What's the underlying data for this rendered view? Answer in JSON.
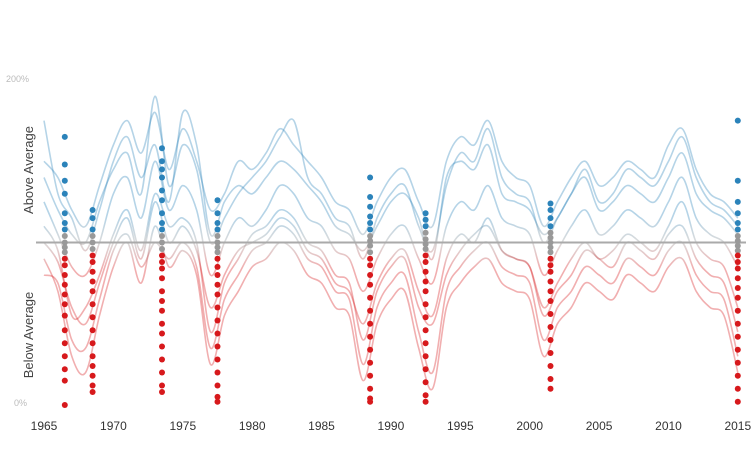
{
  "chart_data": {
    "type": "line",
    "y_tick_labels": [
      "200%",
      "0%"
    ],
    "ylim": [
      0,
      200
    ],
    "baseline": 100,
    "labels": {
      "above": "Above Average",
      "below": "Below Average"
    },
    "x_tick_labels": [
      "1965",
      "1970",
      "1975",
      "1980",
      "1985",
      "1990",
      "1995",
      "2000",
      "2005",
      "2010",
      "2015"
    ],
    "xlim": [
      1965,
      2015.3
    ],
    "colors": {
      "above": "#2b83ba",
      "below": "#d7191c",
      "near": "#999999",
      "baseline": "#aaaaaa"
    },
    "series": [
      {
        "x": [
          1965,
          1966,
          1967,
          1968,
          1969,
          1970,
          1971,
          1972,
          1973,
          1974,
          1975,
          1976,
          1977,
          1978,
          1979,
          1980,
          1981,
          1982,
          1983,
          1984,
          1985,
          1986,
          1987,
          1988,
          1989,
          1990,
          1991,
          1992,
          1993,
          1994,
          1995,
          1996,
          1997,
          1998,
          1999,
          2000,
          2001,
          2002,
          2003,
          2004,
          2005,
          2006,
          2007,
          2008,
          2009,
          2010,
          2011,
          2012,
          2013,
          2014,
          2015
        ],
        "y": [
          175,
          130,
          115,
          95,
          120,
          150,
          165,
          140,
          160,
          125,
          180,
          160,
          105,
          125,
          135,
          130,
          140,
          150,
          145,
          135,
          125,
          110,
          105,
          95,
          110,
          125,
          130,
          115,
          90,
          140,
          150,
          145,
          160,
          130,
          125,
          120,
          105,
          115,
          130,
          140,
          120,
          125,
          135,
          130,
          125,
          140,
          155,
          130,
          120,
          115,
          105
        ]
      },
      {
        "x": [
          1965,
          1966,
          1967,
          1968,
          1969,
          1970,
          1971,
          1972,
          1973,
          1974,
          1975,
          1976,
          1977,
          1978,
          1979,
          1980,
          1981,
          1982,
          1983,
          1984,
          1985,
          1986,
          1987,
          1988,
          1989,
          1990,
          1991,
          1992,
          1993,
          1994,
          1995,
          1996,
          1997,
          1998,
          1999,
          2000,
          2001,
          2002,
          2003,
          2004,
          2005,
          2006,
          2007,
          2008,
          2009,
          2010,
          2011,
          2012,
          2013,
          2014,
          2015
        ],
        "y": [
          110,
          95,
          55,
          60,
          80,
          105,
          120,
          95,
          130,
          110,
          115,
          100,
          45,
          75,
          90,
          105,
          110,
          120,
          115,
          100,
          95,
          80,
          75,
          40,
          70,
          85,
          90,
          60,
          50,
          80,
          95,
          105,
          110,
          95,
          90,
          85,
          55,
          70,
          80,
          95,
          90,
          85,
          100,
          95,
          90,
          105,
          110,
          90,
          80,
          75,
          45
        ]
      },
      {
        "x": [
          1965,
          1966,
          1967,
          1968,
          1969,
          1970,
          1971,
          1972,
          1973,
          1974,
          1975,
          1976,
          1977,
          1978,
          1979,
          1980,
          1981,
          1982,
          1983,
          1984,
          1985,
          1986,
          1987,
          1988,
          1989,
          1990,
          1991,
          1992,
          1993,
          1994,
          1995,
          1996,
          1997,
          1998,
          1999,
          2000,
          2001,
          2002,
          2003,
          2004,
          2005,
          2006,
          2007,
          2008,
          2009,
          2010,
          2011,
          2012,
          2013,
          2014,
          2015
        ],
        "y": [
          150,
          140,
          120,
          110,
          135,
          160,
          175,
          155,
          180,
          145,
          170,
          150,
          120,
          130,
          150,
          145,
          155,
          170,
          160,
          150,
          140,
          125,
          120,
          105,
          125,
          140,
          145,
          125,
          110,
          150,
          165,
          160,
          175,
          150,
          140,
          135,
          110,
          125,
          140,
          150,
          135,
          140,
          150,
          145,
          140,
          160,
          170,
          145,
          130,
          125,
          115
        ]
      },
      {
        "x": [
          1965,
          1966,
          1967,
          1968,
          1969,
          1970,
          1971,
          1972,
          1973,
          1974,
          1975,
          1976,
          1977,
          1978,
          1979,
          1980,
          1981,
          1982,
          1983,
          1984,
          1985,
          1986,
          1987,
          1988,
          1989,
          1990,
          1991,
          1992,
          1993,
          1994,
          1995,
          1996,
          1997,
          1998,
          1999,
          2000,
          2001,
          2002,
          2003,
          2004,
          2005,
          2006,
          2007,
          2008,
          2009,
          2010,
          2011,
          2012,
          2013,
          2014,
          2015
        ],
        "y": [
          90,
          70,
          30,
          20,
          55,
          85,
          100,
          75,
          110,
          85,
          95,
          80,
          25,
          55,
          70,
          85,
          90,
          100,
          95,
          80,
          75,
          60,
          55,
          15,
          50,
          65,
          70,
          35,
          10,
          60,
          75,
          85,
          90,
          75,
          70,
          65,
          30,
          50,
          60,
          75,
          70,
          65,
          80,
          75,
          70,
          85,
          90,
          70,
          60,
          55,
          20
        ]
      },
      {
        "x": [
          1965,
          1966,
          1967,
          1968,
          1969,
          1970,
          1971,
          1972,
          1973,
          1974,
          1975,
          1976,
          1977,
          1978,
          1979,
          1980,
          1981,
          1982,
          1983,
          1984,
          1985,
          1986,
          1987,
          1988,
          1989,
          1990,
          1991,
          1992,
          1993,
          1994,
          1995,
          1996,
          1997,
          1998,
          1999,
          2000,
          2001,
          2002,
          2003,
          2004,
          2005,
          2006,
          2007,
          2008,
          2009,
          2010,
          2011,
          2012,
          2013,
          2014,
          2015
        ],
        "y": [
          125,
          105,
          85,
          80,
          100,
          130,
          140,
          115,
          150,
          120,
          135,
          120,
          80,
          100,
          115,
          110,
          120,
          135,
          130,
          115,
          110,
          95,
          90,
          70,
          90,
          105,
          110,
          90,
          75,
          110,
          125,
          120,
          135,
          115,
          110,
          105,
          80,
          95,
          110,
          120,
          105,
          110,
          120,
          115,
          110,
          125,
          140,
          115,
          105,
          100,
          85
        ]
      },
      {
        "x": [
          1965,
          1966,
          1967,
          1968,
          1969,
          1970,
          1971,
          1972,
          1973,
          1974,
          1975,
          1976,
          1977,
          1978,
          1979,
          1980,
          1981,
          1982,
          1983,
          1984,
          1985,
          1986,
          1987,
          1988,
          1989,
          1990,
          1991,
          1992,
          1993,
          1994,
          1995,
          1996,
          1997,
          1998,
          1999,
          2000,
          2001,
          2002,
          2003,
          2004,
          2005,
          2006,
          2007,
          2008,
          2009,
          2010,
          2011,
          2012,
          2013,
          2014,
          2015
        ],
        "y": [
          100,
          88,
          60,
          50,
          75,
          100,
          115,
          90,
          125,
          100,
          110,
          95,
          60,
          80,
          95,
          100,
          105,
          115,
          110,
          95,
          90,
          75,
          70,
          50,
          75,
          90,
          95,
          70,
          55,
          90,
          105,
          100,
          115,
          95,
          90,
          85,
          60,
          75,
          90,
          100,
          90,
          95,
          105,
          100,
          95,
          110,
          125,
          100,
          90,
          85,
          60
        ]
      },
      {
        "x": [
          1965,
          1966,
          1967,
          1968,
          1969,
          1970,
          1971,
          1972,
          1973,
          1974,
          1975,
          1976,
          1977,
          1978,
          1979,
          1980,
          1981,
          1982,
          1983,
          1984,
          1985,
          1986,
          1987,
          1988,
          1989,
          1990,
          1991,
          1992,
          1993,
          1994,
          1995,
          1996,
          1997,
          1998,
          1999,
          2000,
          2001,
          2002,
          2003,
          2004,
          2005,
          2006,
          2007,
          2008,
          2009,
          2010,
          2011,
          2012,
          2013,
          2014,
          2015
        ],
        "y": [
          140,
          120,
          105,
          100,
          125,
          145,
          155,
          130,
          190,
          135,
          160,
          145,
          100,
          115,
          130,
          140,
          150,
          165,
          175,
          140,
          130,
          115,
          110,
          90,
          115,
          130,
          135,
          110,
          95,
          135,
          155,
          150,
          170,
          140,
          130,
          125,
          100,
          115,
          130,
          145,
          125,
          130,
          145,
          140,
          135,
          150,
          165,
          140,
          125,
          120,
          110
        ]
      },
      {
        "x": [
          1965,
          1966,
          1967,
          1968,
          1969,
          1970,
          1971,
          1972,
          1973,
          1974,
          1975,
          1976,
          1977,
          1978,
          1979,
          1980,
          1981,
          1982,
          1983,
          1984,
          1985,
          1986,
          1987,
          1988,
          1989,
          1990,
          1991,
          1992,
          1993,
          1994,
          1995,
          1996,
          1997,
          1998,
          1999,
          2000,
          2001,
          2002,
          2003,
          2004,
          2005,
          2006,
          2007,
          2008,
          2009,
          2010,
          2011,
          2012,
          2013,
          2014,
          2015
        ],
        "y": [
          80,
          75,
          40,
          35,
          65,
          95,
          105,
          85,
          100,
          90,
          100,
          85,
          35,
          65,
          80,
          95,
          100,
          110,
          105,
          90,
          85,
          70,
          65,
          25,
          60,
          75,
          80,
          45,
          20,
          70,
          85,
          95,
          100,
          85,
          80,
          75,
          40,
          60,
          70,
          85,
          80,
          75,
          90,
          85,
          80,
          95,
          100,
          80,
          70,
          65,
          30
        ]
      }
    ],
    "point_markers": [
      {
        "x": 1966.5,
        "y": [
          165,
          148,
          138,
          130,
          118,
          112,
          108,
          104,
          100,
          97,
          94,
          90,
          86,
          80,
          74,
          68,
          62,
          55,
          46,
          38,
          30,
          22,
          15,
          0
        ]
      },
      {
        "x": 1968.5,
        "y": [
          120,
          115,
          108,
          104,
          100,
          96,
          92,
          88,
          82,
          76,
          70,
          62,
          54,
          46,
          38,
          30,
          24,
          18,
          12,
          8
        ]
      },
      {
        "x": 1973.5,
        "y": [
          158,
          150,
          145,
          140,
          132,
          126,
          118,
          112,
          108,
          104,
          100,
          96,
          92,
          88,
          84,
          78,
          70,
          64,
          58,
          50,
          44,
          36,
          28,
          20,
          12,
          8
        ]
      },
      {
        "x": 1977.5,
        "y": [
          126,
          118,
          112,
          108,
          104,
          100,
          97,
          94,
          90,
          85,
          80,
          74,
          68,
          60,
          52,
          44,
          36,
          28,
          20,
          12,
          5,
          2
        ]
      },
      {
        "x": 1988.5,
        "y": [
          140,
          128,
          122,
          116,
          112,
          108,
          104,
          101,
          98,
          94,
          90,
          86,
          80,
          74,
          66,
          58,
          50,
          42,
          34,
          26,
          18,
          10,
          4,
          2
        ]
      },
      {
        "x": 1992.5,
        "y": [
          118,
          114,
          110,
          106,
          102,
          99,
          96,
          92,
          88,
          82,
          76,
          70,
          62,
          54,
          46,
          38,
          30,
          22,
          14,
          6,
          2
        ]
      },
      {
        "x": 2001.5,
        "y": [
          124,
          120,
          115,
          110,
          106,
          103,
          100,
          97,
          94,
          90,
          86,
          82,
          76,
          70,
          64,
          56,
          48,
          40,
          32,
          24,
          16,
          10
        ]
      },
      {
        "x": 2015,
        "y": [
          175,
          138,
          125,
          118,
          112,
          108,
          104,
          101,
          98,
          95,
          92,
          88,
          84,
          78,
          72,
          66,
          58,
          50,
          42,
          34,
          26,
          18,
          10,
          2
        ]
      }
    ]
  }
}
